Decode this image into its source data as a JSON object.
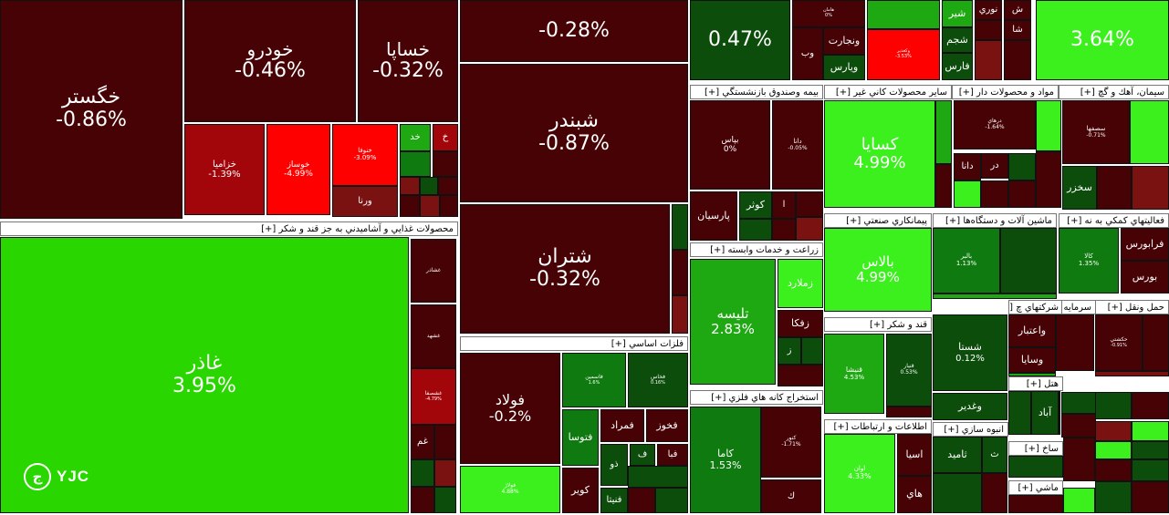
{
  "colors": {
    "strong_red": "#ff0000",
    "red": "#a3060a",
    "dark_red": "#7a1212",
    "maroon": "#470205",
    "dark_green": "#0c4d0c",
    "green": "#0f7a0f",
    "mid_green": "#1ea812",
    "bright_green": "#29d600",
    "lime": "#3cf01e",
    "border": "#111111"
  },
  "watermark": {
    "text": "YJC",
    "icon": "yjc-logo-icon"
  },
  "chart_data": {
    "type": "treemap",
    "metric": "daily price change (%)",
    "sectors": [
      {
        "label": "محصولات غذايي و آشاميدني به جز قند و شكر [+]"
      },
      {
        "label": "فلزات اساسي [+]"
      },
      {
        "label": "بيمه وصندوق بازنشستگي [+]"
      },
      {
        "label": "ساير محصولات كاني غير [+]"
      },
      {
        "label": "مواد و محصولات دار [+]"
      },
      {
        "label": "سيمان، آهك و گچ [+]"
      },
      {
        "label": "زراعت و خدمات وابسته [+]"
      },
      {
        "label": "استخراج كانه هاي فلزي [+]"
      },
      {
        "label": "پيمانكاري صنعتي [+]"
      },
      {
        "label": "قند و شكر [+]"
      },
      {
        "label": "اطلاعات و ارتباطات [+]"
      },
      {
        "label": "ماشين آلات و دستگاه‌ها [+]"
      },
      {
        "label": "فعاليتهاي كمكي به نه [+]"
      },
      {
        "label": "شركتهاي چ [+]"
      },
      {
        "label": "سرمايه گذاريها [+]"
      },
      {
        "label": "حمل ونقل [+]"
      },
      {
        "label": "انبوه سازي [+]"
      },
      {
        "label": "هتل [+]"
      },
      {
        "label": "ساخ [+]"
      },
      {
        "label": "ماشي [+]"
      }
    ],
    "tiles": [
      {
        "name": "خگستر",
        "change": "-0.86%",
        "color": "maroon"
      },
      {
        "name": "خودرو",
        "change": "-0.46%",
        "color": "maroon"
      },
      {
        "name": "خساپا",
        "change": "-0.32%",
        "color": "maroon"
      },
      {
        "name": "خزاميا",
        "change": "-1.39%",
        "color": "red"
      },
      {
        "name": "خوساز",
        "change": "-4.99%",
        "color": "strong_red"
      },
      {
        "name": "خنوفا",
        "change": "-3.09%",
        "color": "strong_red"
      },
      {
        "name": "ورنا",
        "change": "",
        "color": "dark_red"
      },
      {
        "name": "خد",
        "change": "",
        "color": "mid_green"
      },
      {
        "name": "خ",
        "change": "",
        "color": "red"
      },
      {
        "name": "غاذر",
        "change": "3.95%",
        "color": "bright_green"
      },
      {
        "name": "غشاذر",
        "change": "",
        "color": "maroon"
      },
      {
        "name": "غشهد",
        "change": "",
        "color": "maroon"
      },
      {
        "name": "غشصفا",
        "change": "-4.79%",
        "color": "red"
      },
      {
        "name": "غم",
        "change": "",
        "color": "maroon"
      },
      {
        "name": "",
        "change": "-0.28%",
        "color": "maroon"
      },
      {
        "name": "شبندر",
        "change": "-0.87%",
        "color": "maroon"
      },
      {
        "name": "شتران",
        "change": "-0.32%",
        "color": "maroon"
      },
      {
        "name": "فولاد",
        "change": "-0.2%",
        "color": "maroon"
      },
      {
        "name": "فولاژ",
        "change": "4.88%",
        "color": "lime"
      },
      {
        "name": "فاسمين",
        "change": "1.6%",
        "color": "green"
      },
      {
        "name": "فخاس",
        "change": "0.16%",
        "color": "dark_green"
      },
      {
        "name": "فتوسا",
        "change": "",
        "color": "green"
      },
      {
        "name": "فمراد",
        "change": "",
        "color": "maroon"
      },
      {
        "name": "فخوز",
        "change": "",
        "color": "maroon"
      },
      {
        "name": "ف",
        "change": "",
        "color": "dark_green"
      },
      {
        "name": "فبا",
        "change": "",
        "color": "maroon"
      },
      {
        "name": "ذو",
        "change": "",
        "color": "dark_green"
      },
      {
        "name": "كوير",
        "change": "",
        "color": "maroon"
      },
      {
        "name": "فنيتا",
        "change": "",
        "color": "dark_green"
      },
      {
        "name": "",
        "change": "0.47%",
        "color": "dark_green"
      },
      {
        "name": "هامان",
        "change": "0%",
        "color": "maroon"
      },
      {
        "name": "ونجارت",
        "change": "",
        "color": "maroon"
      },
      {
        "name": "وب",
        "change": "",
        "color": "maroon"
      },
      {
        "name": "ويارس",
        "change": "",
        "color": "dark_green"
      },
      {
        "name": "وكغدير",
        "change": "-3.53%",
        "color": "strong_red"
      },
      {
        "name": "شير",
        "change": "",
        "color": "mid_green"
      },
      {
        "name": "شجم",
        "change": "",
        "color": "dark_green"
      },
      {
        "name": "فارس",
        "change": "",
        "color": "dark_green"
      },
      {
        "name": "نوري",
        "change": "",
        "color": "maroon"
      },
      {
        "name": "شا",
        "change": "",
        "color": "maroon"
      },
      {
        "name": "ش",
        "change": "",
        "color": "maroon"
      },
      {
        "name": "",
        "change": "3.64%",
        "color": "lime"
      },
      {
        "name": "بپاس",
        "change": "0%",
        "color": "maroon"
      },
      {
        "name": "دانا",
        "change": "-0.05%",
        "color": "maroon"
      },
      {
        "name": "پارسيان",
        "change": "",
        "color": "maroon"
      },
      {
        "name": "كوثر",
        "change": "",
        "color": "dark_green"
      },
      {
        "name": "ا",
        "change": "",
        "color": "maroon"
      },
      {
        "name": "كسايا",
        "change": "4.99%",
        "color": "lime"
      },
      {
        "name": "درهاي",
        "change": "-1.64%",
        "color": "maroon"
      },
      {
        "name": "دانا",
        "change": "",
        "color": "maroon"
      },
      {
        "name": "در",
        "change": "",
        "color": "maroon"
      },
      {
        "name": "سصفها",
        "change": "-0.71%",
        "color": "maroon"
      },
      {
        "name": "سخزر",
        "change": "",
        "color": "dark_green"
      },
      {
        "name": "تليسه",
        "change": "2.83%",
        "color": "mid_green"
      },
      {
        "name": "زملارد",
        "change": "",
        "color": "lime"
      },
      {
        "name": "زفكا",
        "change": "",
        "color": "maroon"
      },
      {
        "name": "ز",
        "change": "",
        "color": "dark_green"
      },
      {
        "name": "كاما",
        "change": "1.53%",
        "color": "green"
      },
      {
        "name": "كنور",
        "change": "-1.71%",
        "color": "maroon"
      },
      {
        "name": "ك",
        "change": "",
        "color": "maroon"
      },
      {
        "name": "بالاس",
        "change": "4.99%",
        "color": "lime"
      },
      {
        "name": "قنيشا",
        "change": "4.53%",
        "color": "mid_green"
      },
      {
        "name": "قنيار",
        "change": "0.53%",
        "color": "dark_green"
      },
      {
        "name": "اوان",
        "change": "4.33%",
        "color": "lime"
      },
      {
        "name": "اسيا",
        "change": "",
        "color": "maroon"
      },
      {
        "name": "هاي",
        "change": "",
        "color": "maroon"
      },
      {
        "name": "بالبر",
        "change": "1.13%",
        "color": "green"
      },
      {
        "name": "كالا",
        "change": "1.35%",
        "color": "green"
      },
      {
        "name": "فرابورس",
        "change": "",
        "color": "maroon"
      },
      {
        "name": "بورس",
        "change": "",
        "color": "maroon"
      },
      {
        "name": "شستا",
        "change": "0.12%",
        "color": "dark_green"
      },
      {
        "name": "وغدير",
        "change": "",
        "color": "dark_green"
      },
      {
        "name": "واعتبار",
        "change": "",
        "color": "maroon"
      },
      {
        "name": "وسايا",
        "change": "",
        "color": "maroon"
      },
      {
        "name": "حكشتي",
        "change": "-0.91%",
        "color": "maroon"
      },
      {
        "name": "ثامید",
        "change": "",
        "color": "dark_green"
      },
      {
        "name": "ث",
        "change": "",
        "color": "dark_green"
      },
      {
        "name": "آباد",
        "change": "",
        "color": "dark_green"
      }
    ]
  }
}
